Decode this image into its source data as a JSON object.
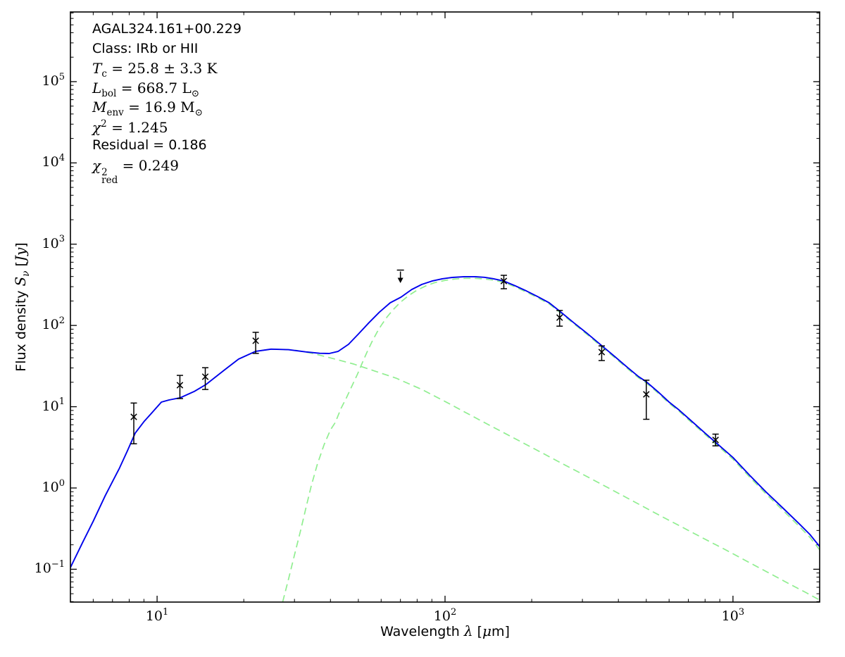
{
  "figure": {
    "background": "#ffffff",
    "frame_color": "#000000"
  },
  "chart_data": {
    "type": "line",
    "title": "",
    "legend": "none",
    "grid": false,
    "x_axis": {
      "scale": "log",
      "label_parts": [
        {
          "t": "Wavelength ",
          "s": "sans"
        },
        {
          "t": "λ",
          "s": "it"
        },
        {
          "t": " [",
          "s": "sans"
        },
        {
          "t": "μ",
          "s": "it"
        },
        {
          "t": "m]",
          "s": "sans"
        }
      ],
      "min": 5,
      "max": 2000,
      "major_ticks": [
        {
          "value": 10,
          "base": "10",
          "exp": "1"
        },
        {
          "value": 100,
          "base": "10",
          "exp": "2"
        },
        {
          "value": 1000,
          "base": "10",
          "exp": "3"
        }
      ]
    },
    "y_axis": {
      "scale": "log",
      "label_parts": [
        {
          "t": "Flux density ",
          "s": "sans"
        },
        {
          "t": "S",
          "s": "it"
        },
        {
          "t": "ν",
          "s": "subit"
        },
        {
          "t": " [",
          "s": "sans"
        },
        {
          "t": "Jy",
          "s": "it"
        },
        {
          "t": "]",
          "s": "sans"
        }
      ],
      "min": 0.03946,
      "max": 720000,
      "major_ticks": [
        {
          "value": 100000,
          "base": "10",
          "exp": "5"
        },
        {
          "value": 10000,
          "base": "10",
          "exp": "4"
        },
        {
          "value": 1000,
          "base": "10",
          "exp": "3"
        },
        {
          "value": 100,
          "base": "10",
          "exp": "2"
        },
        {
          "value": 10,
          "base": "10",
          "exp": "1"
        },
        {
          "value": 1,
          "base": "10",
          "exp": "0"
        },
        {
          "value": 0.1,
          "base": "10",
          "exp": "−1"
        }
      ]
    },
    "annotations": {
      "lines": [
        {
          "name": "source-name",
          "parts": [
            {
              "t": "AGAL324.161+00.229",
              "s": "sans"
            }
          ]
        },
        {
          "name": "class",
          "parts": [
            {
              "t": "Class: IRb or HII",
              "s": "sans"
            }
          ]
        },
        {
          "name": "temperature",
          "parts": [
            {
              "t": "T",
              "s": "it"
            },
            {
              "t": "c",
              "s": "sub"
            },
            {
              "t": " = 25.8 ± 3.3 K",
              "s": "rm"
            }
          ]
        },
        {
          "name": "luminosity",
          "parts": [
            {
              "t": "L",
              "s": "it"
            },
            {
              "t": "bol",
              "s": "sub"
            },
            {
              "t": " = 668.7 L",
              "s": "rm"
            },
            {
              "t": "⊙",
              "s": "sub"
            }
          ]
        },
        {
          "name": "envelope-mass",
          "parts": [
            {
              "t": "M",
              "s": "it"
            },
            {
              "t": "env",
              "s": "sub"
            },
            {
              "t": " = 16.9 M",
              "s": "rm"
            },
            {
              "t": "⊙",
              "s": "sub"
            }
          ]
        },
        {
          "name": "chi2",
          "parts": [
            {
              "t": "χ",
              "s": "it"
            },
            {
              "t": "2",
              "s": "sup"
            },
            {
              "t": " = 1.245",
              "s": "rm"
            }
          ]
        },
        {
          "name": "residual",
          "parts": [
            {
              "t": "Residual = 0.186",
              "s": "sans"
            }
          ]
        },
        {
          "name": "chi2-reduced",
          "parts": [
            {
              "t": "χ",
              "s": "it"
            },
            {
              "sup": "2",
              "sub": "red",
              "s": "stack"
            },
            {
              "t": " = 0.249",
              "s": "rm"
            }
          ]
        }
      ]
    },
    "series": [
      {
        "name": "hot-component",
        "color": "#90ee90",
        "style": "dashed",
        "width": 1.7,
        "points": [
          [
            5,
            0.105
          ],
          [
            5.5,
            0.21
          ],
          [
            6,
            0.39
          ],
          [
            6.6,
            0.8
          ],
          [
            7,
            1.2
          ],
          [
            7.4,
            1.75
          ],
          [
            7.9,
            2.9
          ],
          [
            8.4,
            4.75
          ],
          [
            9,
            6.55
          ],
          [
            9.5,
            8.1
          ],
          [
            10.35,
            11.4
          ],
          [
            11,
            12.1
          ],
          [
            12.05,
            12.9
          ],
          [
            13.5,
            15.5
          ],
          [
            14.8,
            18.8
          ],
          [
            17.2,
            28.6
          ],
          [
            19.2,
            38.6
          ],
          [
            22,
            48.1
          ],
          [
            24.9,
            51.1
          ],
          [
            28.6,
            50.3
          ],
          [
            30,
            49.8
          ],
          [
            32,
            47.8
          ],
          [
            34.7,
            45.3
          ],
          [
            40.6,
            39.4
          ],
          [
            48.2,
            33.5
          ],
          [
            57,
            27.5
          ],
          [
            67.5,
            22.5
          ],
          [
            83.1,
            16.3
          ],
          [
            100,
            11.6
          ],
          [
            120,
            8.2
          ],
          [
            146,
            5.67
          ],
          [
            180,
            3.84
          ],
          [
            220,
            2.64
          ],
          [
            257,
            1.97
          ],
          [
            300,
            1.48
          ],
          [
            360,
            1.05
          ],
          [
            451,
            0.685
          ],
          [
            550,
            0.47
          ],
          [
            650,
            0.345
          ],
          [
            793,
            0.238
          ],
          [
            950,
            0.171
          ],
          [
            1150,
            0.119
          ],
          [
            1394,
            0.0827
          ],
          [
            1600,
            0.0637
          ],
          [
            1800,
            0.0512
          ],
          [
            2000,
            0.0418
          ]
        ]
      },
      {
        "name": "cold-component",
        "color": "#90ee90",
        "style": "dashed",
        "width": 1.7,
        "points": [
          [
            27.3,
            0.0395
          ],
          [
            28.5,
            0.072
          ],
          [
            30,
            0.15
          ],
          [
            31.5,
            0.3
          ],
          [
            33,
            0.6
          ],
          [
            34.3,
            1.06
          ],
          [
            36,
            1.95
          ],
          [
            38,
            3.4
          ],
          [
            40,
            5.2
          ],
          [
            41.6,
            6.4
          ],
          [
            43.5,
            9.5
          ],
          [
            45.5,
            13
          ],
          [
            47.5,
            18
          ],
          [
            49.6,
            25
          ],
          [
            52,
            37
          ],
          [
            54,
            50
          ],
          [
            56,
            65
          ],
          [
            58,
            82
          ],
          [
            60,
            100
          ],
          [
            63,
            128
          ],
          [
            66,
            156
          ],
          [
            70,
            193
          ],
          [
            75,
            235
          ],
          [
            80,
            272
          ],
          [
            86,
            308
          ],
          [
            92,
            336
          ],
          [
            100,
            358
          ],
          [
            108,
            372
          ],
          [
            117,
            380
          ],
          [
            127,
            380
          ],
          [
            137,
            374
          ],
          [
            146.5,
            362
          ],
          [
            160,
            340
          ],
          [
            175,
            298
          ],
          [
            192,
            257
          ],
          [
            210,
            219
          ],
          [
            230,
            184
          ],
          [
            250,
            146
          ],
          [
            280,
            105
          ],
          [
            310,
            78.5
          ],
          [
            350,
            54.7
          ],
          [
            390,
            39.7
          ],
          [
            430,
            29.5
          ],
          [
            470,
            22.7
          ],
          [
            500,
            19.6
          ],
          [
            550,
            14.7
          ],
          [
            600,
            11
          ],
          [
            650,
            8.8
          ],
          [
            700,
            6.93
          ],
          [
            800,
            4.55
          ],
          [
            870,
            3.5
          ],
          [
            1000,
            2.26
          ],
          [
            1150,
            1.33
          ],
          [
            1300,
            0.85
          ],
          [
            1500,
            0.52
          ],
          [
            1700,
            0.336
          ],
          [
            1850,
            0.247
          ],
          [
            2000,
            0.173
          ]
        ]
      },
      {
        "name": "total-model",
        "color": "#0000ee",
        "style": "solid",
        "width": 1.9,
        "points": [
          [
            5,
            0.105
          ],
          [
            5.5,
            0.21
          ],
          [
            6,
            0.39
          ],
          [
            6.6,
            0.8
          ],
          [
            7,
            1.2
          ],
          [
            7.4,
            1.75
          ],
          [
            7.9,
            2.9
          ],
          [
            8.4,
            4.75
          ],
          [
            9,
            6.55
          ],
          [
            9.5,
            8.1
          ],
          [
            10.35,
            11.4
          ],
          [
            11,
            12.1
          ],
          [
            12.05,
            12.9
          ],
          [
            13.5,
            15.5
          ],
          [
            14.8,
            18.8
          ],
          [
            17.2,
            28.6
          ],
          [
            19.2,
            38.6
          ],
          [
            22,
            48.1
          ],
          [
            24.9,
            51.1
          ],
          [
            28.6,
            50.3
          ],
          [
            32.8,
            47.3
          ],
          [
            36.7,
            45.4
          ],
          [
            39.6,
            45.2
          ],
          [
            42.5,
            47.9
          ],
          [
            46.2,
            58.5
          ],
          [
            50.1,
            79
          ],
          [
            54.4,
            108
          ],
          [
            59.2,
            146
          ],
          [
            64.5,
            190
          ],
          [
            70.3,
            223
          ],
          [
            76.6,
            277
          ],
          [
            83.1,
            320
          ],
          [
            90.1,
            352
          ],
          [
            97.8,
            375
          ],
          [
            106,
            390
          ],
          [
            116.6,
            398
          ],
          [
            127,
            398
          ],
          [
            137,
            391
          ],
          [
            146.5,
            377
          ],
          [
            160,
            352
          ],
          [
            175,
            308
          ],
          [
            192,
            265
          ],
          [
            210,
            226
          ],
          [
            230,
            190
          ],
          [
            250,
            150
          ],
          [
            280,
            108
          ],
          [
            310,
            81
          ],
          [
            350,
            56.5
          ],
          [
            390,
            41
          ],
          [
            430,
            30.5
          ],
          [
            470,
            23.5
          ],
          [
            500,
            20.3
          ],
          [
            550,
            15.2
          ],
          [
            600,
            11.4
          ],
          [
            650,
            9.1
          ],
          [
            700,
            7.2
          ],
          [
            800,
            4.73
          ],
          [
            870,
            3.65
          ],
          [
            1000,
            2.37
          ],
          [
            1150,
            1.4
          ],
          [
            1300,
            0.9
          ],
          [
            1500,
            0.555
          ],
          [
            1700,
            0.362
          ],
          [
            1850,
            0.268
          ],
          [
            2000,
            0.19
          ]
        ]
      }
    ],
    "data_points": {
      "name": "photometry",
      "color": "#000000",
      "marker": "x",
      "points": [
        {
          "lambda": 8.3,
          "flux": 7.5,
          "upper": 11.1,
          "lower": 3.5
        },
        {
          "lambda": 12,
          "flux": 18.4,
          "upper": 24.3,
          "lower": 12.6
        },
        {
          "lambda": 14.7,
          "flux": 23.4,
          "upper": 30.2,
          "lower": 16.3
        },
        {
          "lambda": 22,
          "flux": 64.8,
          "upper": 82.3,
          "lower": 45.3
        },
        {
          "lambda": 160,
          "flux": 352,
          "upper": 414,
          "lower": 283
        },
        {
          "lambda": 250,
          "flux": 125,
          "upper": 153,
          "lower": 98
        },
        {
          "lambda": 350,
          "flux": 47,
          "upper": 56,
          "lower": 37
        },
        {
          "lambda": 500,
          "flux": 14.2,
          "upper": 21.2,
          "lower": 7.0
        },
        {
          "lambda": 870,
          "flux": 3.9,
          "upper": 4.6,
          "lower": 3.3
        }
      ]
    },
    "upper_limits": [
      {
        "lambda": 70,
        "flux": 480
      }
    ]
  }
}
